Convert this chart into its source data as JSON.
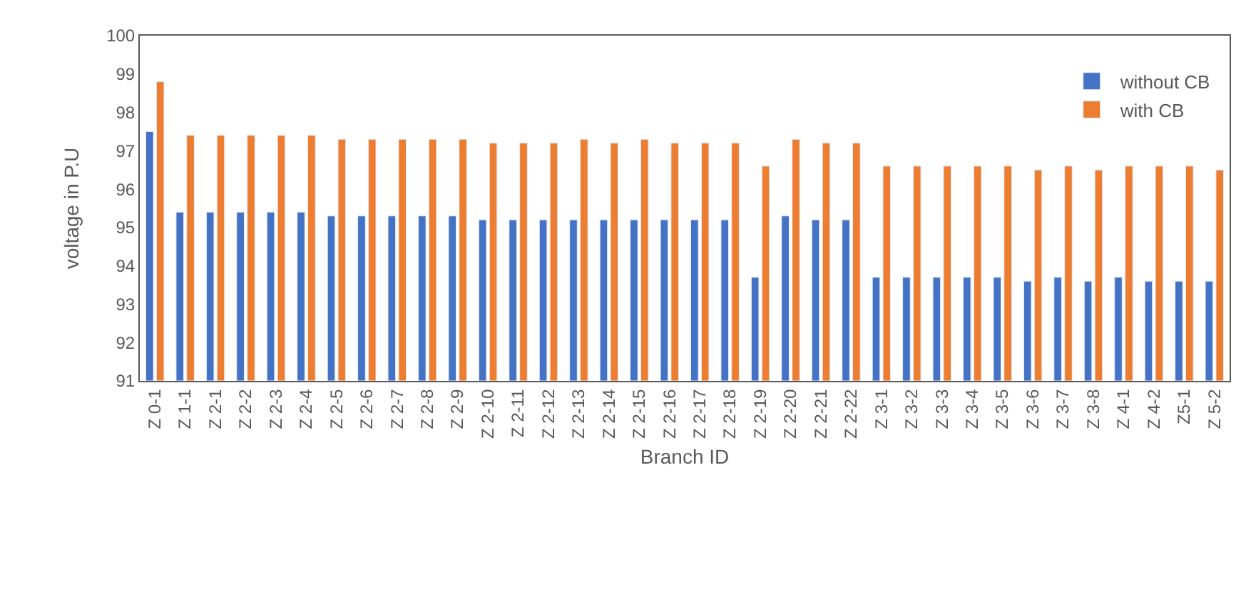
{
  "chart_data": {
    "type": "bar",
    "xlabel": "Branch ID",
    "ylabel": "voltage in P.U",
    "categories": [
      "Z 0-1",
      "Z 1-1",
      "Z 2-1",
      "Z 2-2",
      "Z 2-3",
      "Z 2-4",
      "Z 2-5",
      "Z 2-6",
      "Z 2-7",
      "Z 2-8",
      "Z 2-9",
      "Z 2-10",
      "Z 2-11",
      "Z 2-12",
      "Z 2-13",
      "Z 2-14",
      "Z 2-15",
      "Z 2-16",
      "Z 2-17",
      "Z 2-18",
      "Z 2-19",
      "Z 2-20",
      "Z 2-21",
      "Z 2-22",
      "Z 3-1",
      "Z 3-2",
      "Z 3-3",
      "Z 3-4",
      "Z 3-5",
      "Z 3-6",
      "Z 3-7",
      "Z 3-8",
      "Z 4-1",
      "Z 4-2",
      "Z5-1",
      "Z 5-2"
    ],
    "series": [
      {
        "name": "without CB",
        "color": "#4472c4",
        "values": [
          97.5,
          95.4,
          95.4,
          95.4,
          95.4,
          95.4,
          95.3,
          95.3,
          95.3,
          95.3,
          95.3,
          95.2,
          95.2,
          95.2,
          95.2,
          95.2,
          95.2,
          95.2,
          95.2,
          95.2,
          93.7,
          95.3,
          95.2,
          95.2,
          93.7,
          93.7,
          93.7,
          93.7,
          93.7,
          93.6,
          93.7,
          93.6,
          93.7,
          93.6,
          93.6,
          93.6
        ]
      },
      {
        "name": "with CB",
        "color": "#ed7d31",
        "values": [
          98.8,
          97.4,
          97.4,
          97.4,
          97.4,
          97.4,
          97.3,
          97.3,
          97.3,
          97.3,
          97.3,
          97.2,
          97.2,
          97.2,
          97.3,
          97.2,
          97.3,
          97.2,
          97.2,
          97.2,
          96.6,
          97.3,
          97.2,
          97.2,
          96.6,
          96.6,
          96.6,
          96.6,
          96.6,
          96.5,
          96.6,
          96.5,
          96.6,
          96.6,
          96.6,
          96.5
        ]
      }
    ],
    "ylim": [
      91,
      100
    ],
    "yticks": [
      91,
      92,
      93,
      94,
      95,
      96,
      97,
      98,
      99,
      100
    ],
    "legend": "top right"
  }
}
